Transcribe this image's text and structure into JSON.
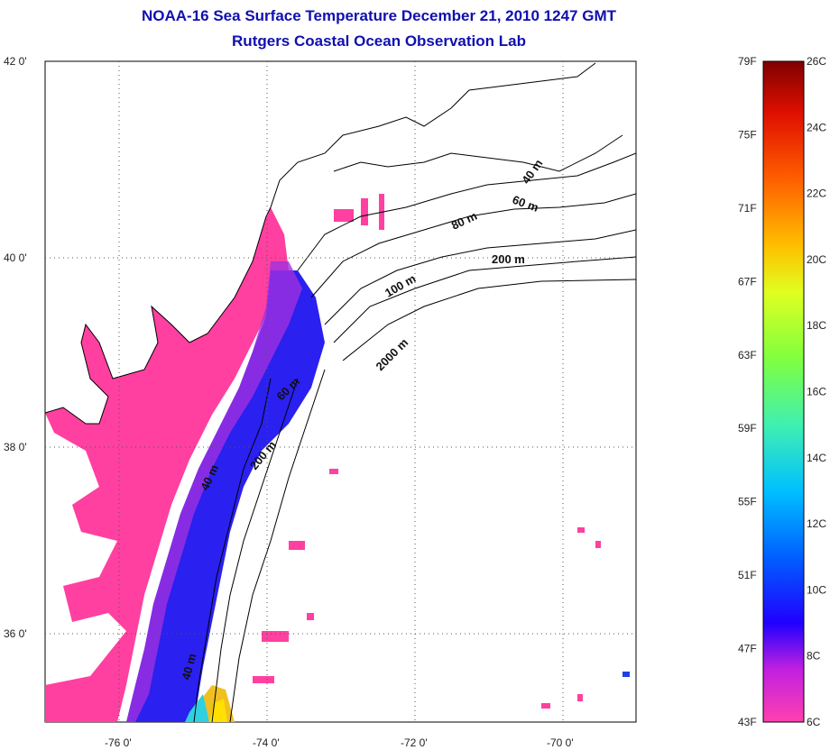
{
  "title_line1": "NOAA-16 Sea Surface Temperature December 21, 2010 1247 GMT",
  "title_line2": "Rutgers Coastal Ocean Observation Lab",
  "map": {
    "lat_labels": [
      "42 0'",
      "40 0'",
      "38 0'",
      "36 0'"
    ],
    "lon_labels": [
      "-76 0'",
      "-74 0'",
      "-72 0'",
      "-70 0'"
    ],
    "contour_labels": [
      "40 m",
      "60 m",
      "80 m",
      "200 m",
      "100 m",
      "2000 m",
      "60 m",
      "200 m",
      "40 m",
      "40 m"
    ],
    "colors": {
      "land_outline": "#000000",
      "cold_water": "#ff40a0",
      "mid_water": "#2020ff",
      "grid": "#555555"
    }
  },
  "colorbar": {
    "fahrenheit_labels": [
      "79F",
      "75F",
      "71F",
      "67F",
      "63F",
      "59F",
      "55F",
      "51F",
      "47F",
      "43F"
    ],
    "celsius_labels": [
      "26C",
      "24C",
      "22C",
      "20C",
      "18C",
      "16C",
      "14C",
      "12C",
      "10C",
      "8C",
      "6C"
    ],
    "range_celsius": [
      6,
      26
    ],
    "range_fahrenheit": [
      43,
      79
    ]
  }
}
